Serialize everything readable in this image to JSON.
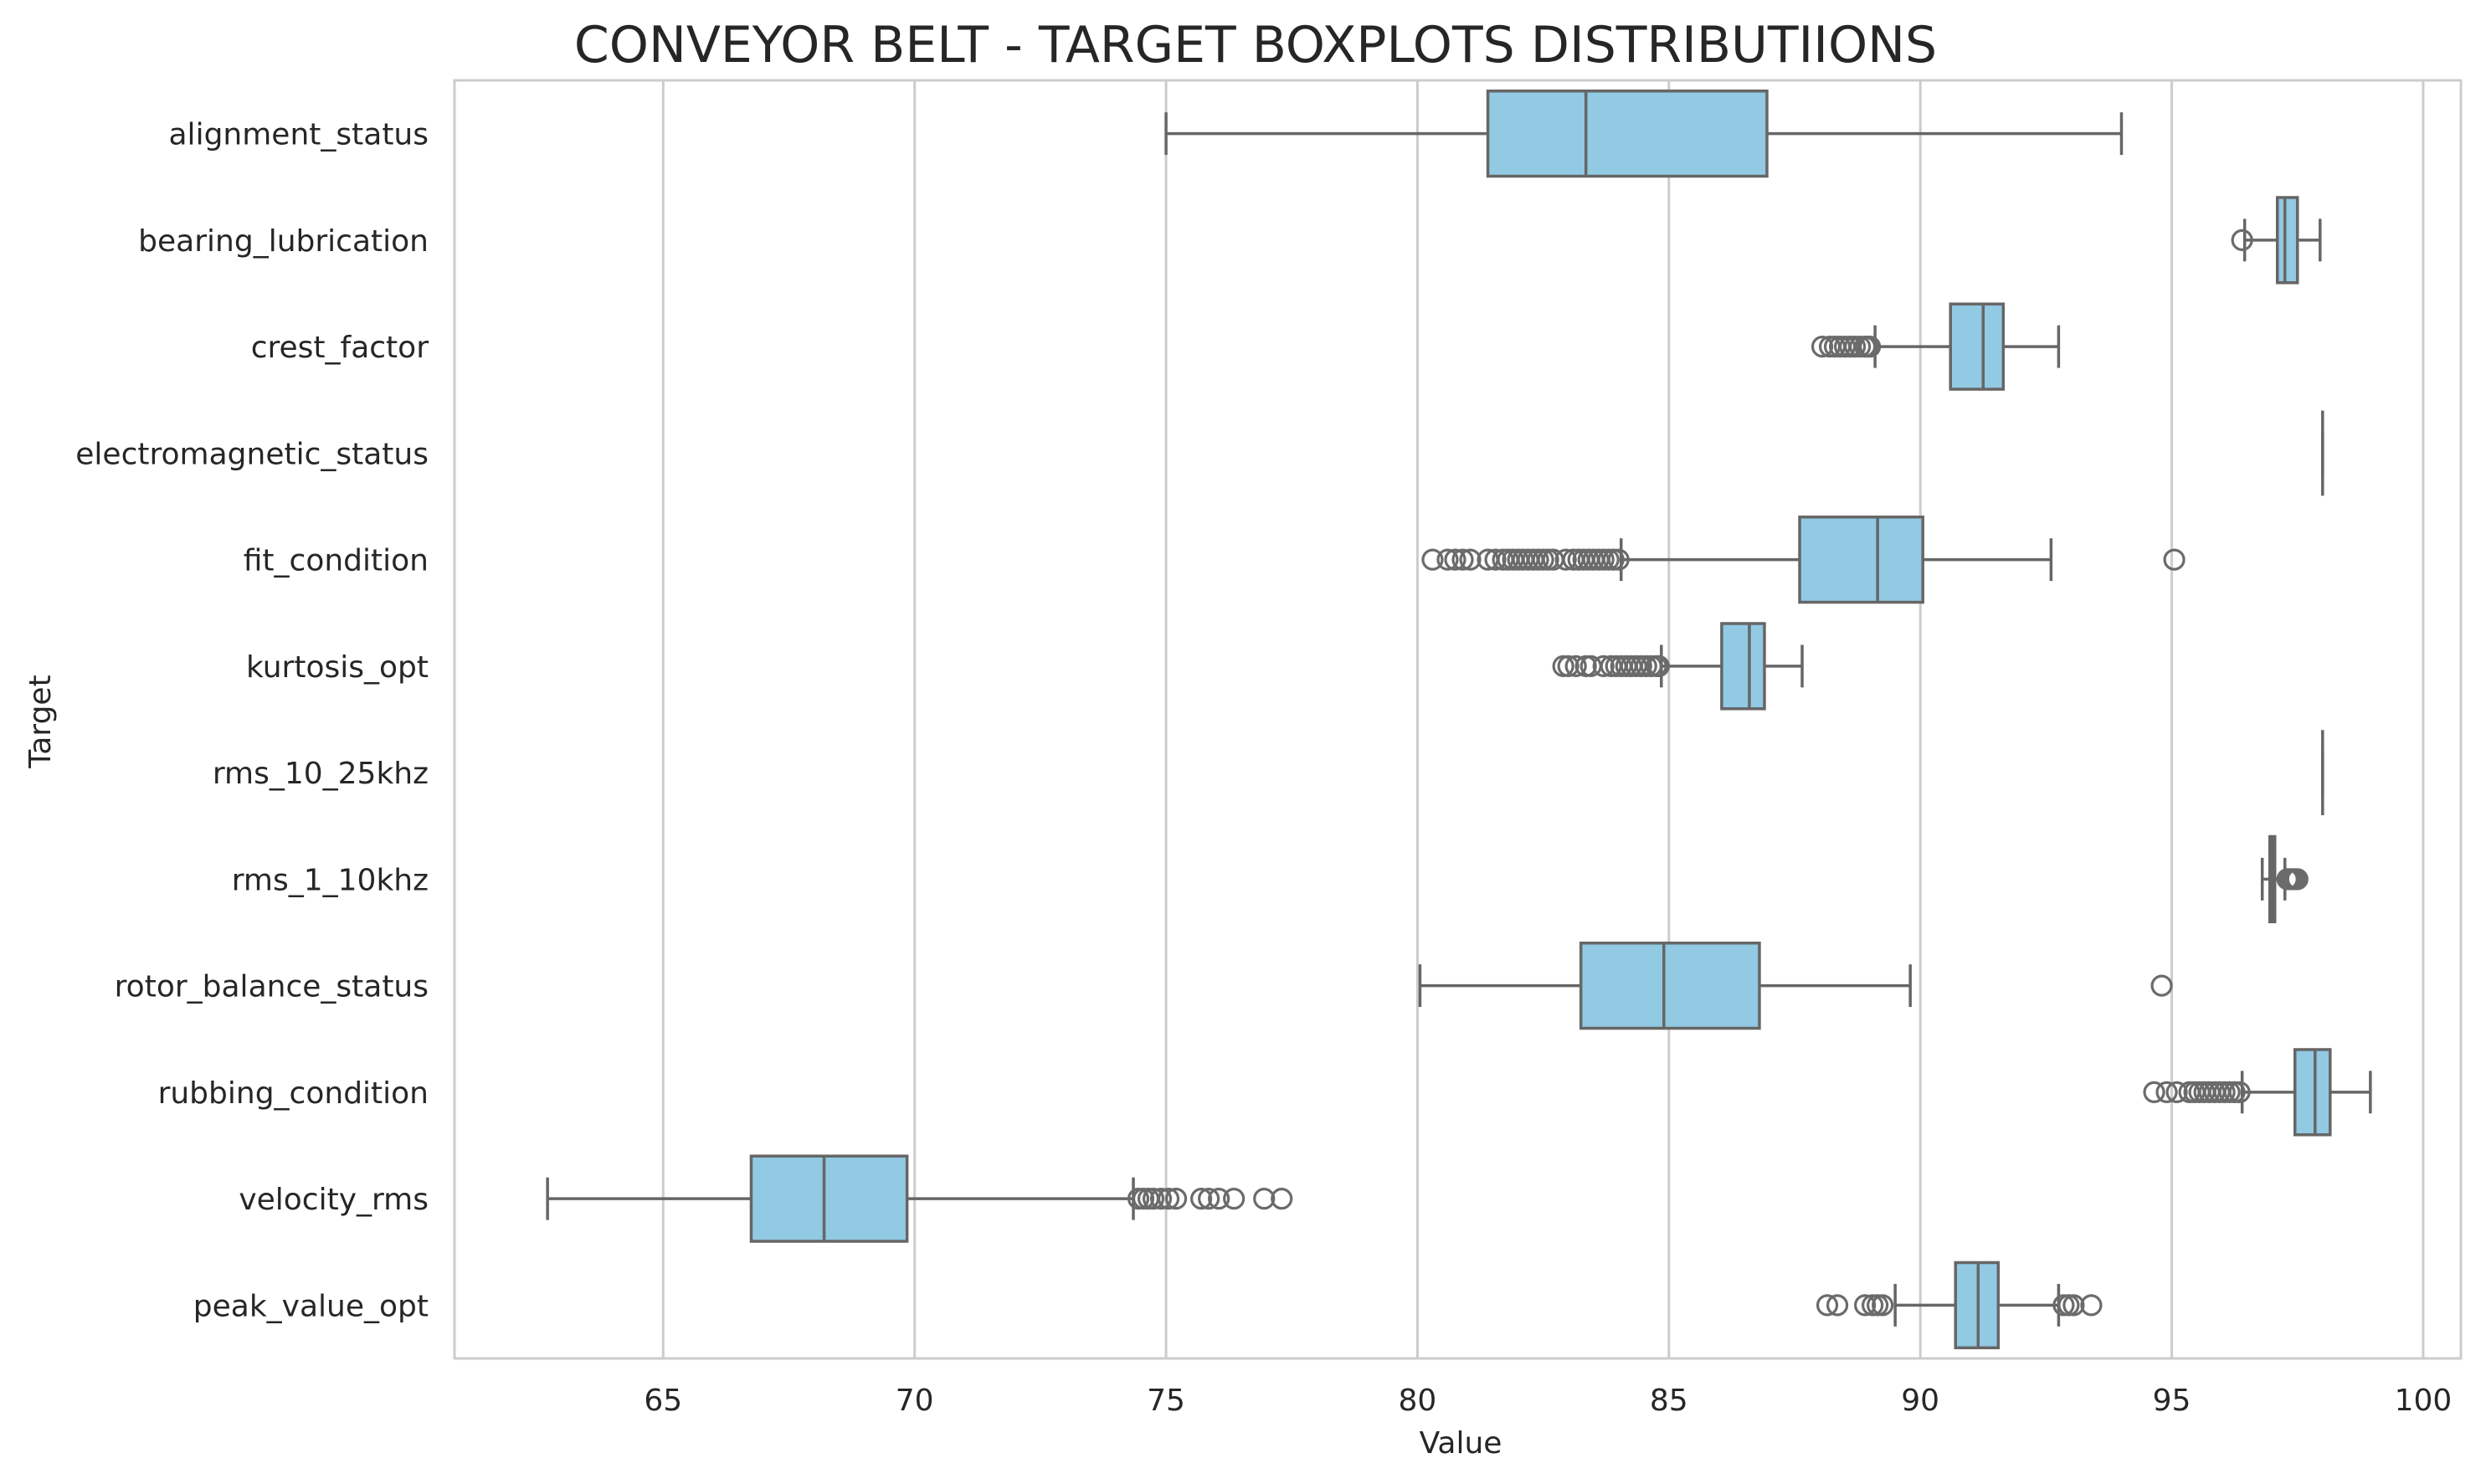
{
  "chart_data": {
    "type": "boxplot",
    "orientation": "horizontal",
    "title": "CONVEYOR BELT - TARGET BOXPLOTS DISTRIBUTIIONS",
    "xlabel": "Value",
    "ylabel": "Target",
    "xlim": [
      60.85,
      100.75
    ],
    "xticks": [
      65,
      70,
      75,
      80,
      85,
      90,
      95,
      100
    ],
    "grid": "vertical",
    "legend": "none",
    "colors": {
      "box_fill": "#92c9e3",
      "line": "#666666",
      "grid": "#cccccc"
    },
    "categories": [
      "alignment_status",
      "bearing_lubrication",
      "crest_factor",
      "electromagnetic_status",
      "fit_condition",
      "kurtosis_opt",
      "rms_10_25khz",
      "rms_1_10khz",
      "rotor_balance_status",
      "rubbing_condition",
      "velocity_rms",
      "peak_value_opt"
    ],
    "boxes": [
      {
        "label": "alignment_status",
        "whislo": 75.0,
        "q1": 81.4,
        "med": 83.35,
        "q3": 86.95,
        "whishi": 94.0,
        "fliers": []
      },
      {
        "label": "bearing_lubrication",
        "whislo": 96.45,
        "q1": 97.1,
        "med": 97.25,
        "q3": 97.5,
        "whishi": 97.95,
        "fliers": [
          96.4
        ]
      },
      {
        "label": "crest_factor",
        "whislo": 89.1,
        "q1": 90.6,
        "med": 91.25,
        "q3": 91.65,
        "whishi": 92.75,
        "fliers": [
          88.05,
          88.2,
          88.3,
          88.4,
          88.5,
          88.6,
          88.7,
          88.8,
          88.9,
          88.95,
          89.0
        ]
      },
      {
        "label": "electromagnetic_status",
        "whislo": 98.0,
        "q1": 98.0,
        "med": 98.0,
        "q3": 98.0,
        "whishi": 98.0,
        "fliers": []
      },
      {
        "label": "fit_condition",
        "whislo": 84.05,
        "q1": 87.6,
        "med": 89.15,
        "q3": 90.05,
        "whishi": 92.6,
        "fliers": [
          80.3,
          80.6,
          80.75,
          80.9,
          81.05,
          81.4,
          81.55,
          81.7,
          81.8,
          81.9,
          82.0,
          82.1,
          82.2,
          82.3,
          82.4,
          82.5,
          82.6,
          82.7,
          82.95,
          83.1,
          83.2,
          83.3,
          83.4,
          83.5,
          83.6,
          83.7,
          83.8,
          83.9,
          84.0,
          95.05
        ]
      },
      {
        "label": "kurtosis_opt",
        "whislo": 84.85,
        "q1": 86.05,
        "med": 86.6,
        "q3": 86.9,
        "whishi": 87.65,
        "fliers": [
          82.9,
          83.0,
          83.15,
          83.35,
          83.45,
          83.7,
          83.85,
          83.95,
          84.05,
          84.15,
          84.25,
          84.35,
          84.45,
          84.55,
          84.65,
          84.75,
          84.8
        ]
      },
      {
        "label": "rms_10_25khz",
        "whislo": 98.0,
        "q1": 98.0,
        "med": 98.0,
        "q3": 98.0,
        "whishi": 98.0,
        "fliers": []
      },
      {
        "label": "rms_1_10khz",
        "whislo": 96.8,
        "q1": 96.95,
        "med": 97.0,
        "q3": 97.05,
        "whishi": 97.25,
        "fliers": [
          97.3,
          97.35,
          97.4,
          97.45,
          97.5
        ]
      },
      {
        "label": "rotor_balance_status",
        "whislo": 80.05,
        "q1": 83.25,
        "med": 84.9,
        "q3": 86.8,
        "whishi": 89.8,
        "fliers": [
          94.8
        ]
      },
      {
        "label": "rubbing_condition",
        "whislo": 96.4,
        "q1": 97.45,
        "med": 97.85,
        "q3": 98.15,
        "whishi": 98.95,
        "fliers": [
          94.65,
          94.9,
          95.1,
          95.35,
          95.45,
          95.55,
          95.65,
          95.75,
          95.85,
          95.95,
          96.05,
          96.15,
          96.25,
          96.35
        ]
      },
      {
        "label": "velocity_rms",
        "whislo": 62.7,
        "q1": 66.75,
        "med": 68.2,
        "q3": 69.85,
        "whishi": 74.35,
        "fliers": [
          74.45,
          74.55,
          74.65,
          74.75,
          74.9,
          75.05,
          75.2,
          75.7,
          75.85,
          76.05,
          76.35,
          76.95,
          77.3
        ]
      },
      {
        "label": "peak_value_opt",
        "whislo": 89.5,
        "q1": 90.7,
        "med": 91.15,
        "q3": 91.55,
        "whishi": 92.75,
        "fliers": [
          88.15,
          88.35,
          88.9,
          89.05,
          89.15,
          89.25,
          92.85,
          92.95,
          93.05,
          93.4
        ]
      }
    ]
  }
}
